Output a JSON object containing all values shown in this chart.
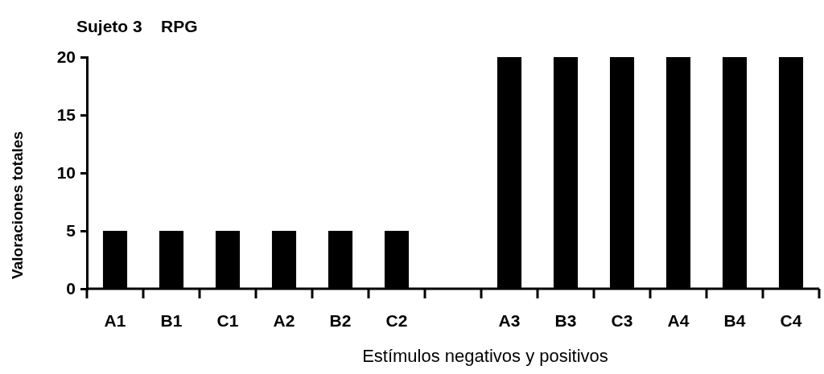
{
  "chart_data": {
    "type": "bar",
    "title": "Sujeto 3    RPG",
    "xlabel": "Estímulos negativos y positivos",
    "ylabel": "Valoraciones totales",
    "categories": [
      "A1",
      "B1",
      "C1",
      "A2",
      "B2",
      "C2",
      null,
      "A3",
      "B3",
      "C3",
      "A4",
      "B4",
      "C4"
    ],
    "values": [
      5,
      5,
      5,
      5,
      5,
      5,
      null,
      20,
      20,
      20,
      20,
      20,
      20
    ],
    "color": "#000000",
    "ylim": [
      0,
      20
    ],
    "yticks": [
      0,
      5,
      10,
      15,
      20
    ],
    "grid": false
  }
}
